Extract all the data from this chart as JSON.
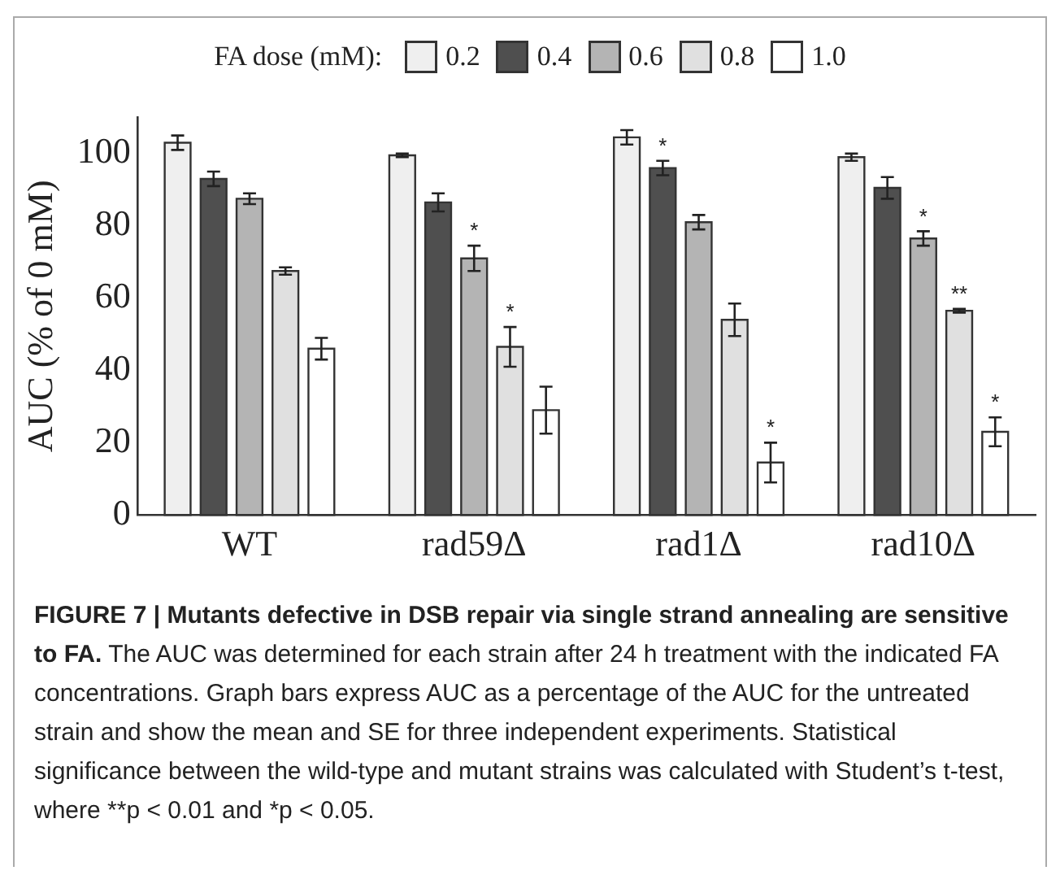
{
  "chart_data": {
    "type": "bar",
    "ylabel": "AUC (% of 0 mM)",
    "legend_title": "FA dose (mM):",
    "legend": "top",
    "grid": false,
    "categories": [
      "WT",
      "rad59Δ",
      "rad1Δ",
      "rad10Δ"
    ],
    "ylim": [
      0,
      110
    ],
    "yticks": [
      0,
      20,
      40,
      60,
      80,
      100
    ],
    "series": [
      {
        "name": "0.2",
        "color": "#efefef",
        "values": [
          103,
          99.5,
          104.5,
          99
        ],
        "errors": [
          2,
          0.5,
          2,
          1
        ]
      },
      {
        "name": "0.4",
        "color": "#4f4f4f",
        "values": [
          93,
          86.5,
          96,
          90.5
        ],
        "errors": [
          2,
          2.5,
          2,
          3
        ],
        "value_labels": [
          null,
          null,
          "*",
          null
        ]
      },
      {
        "name": "0.6",
        "color": "#b4b4b4",
        "values": [
          87.5,
          71,
          81,
          76.5
        ],
        "errors": [
          1.5,
          3.5,
          2,
          2
        ],
        "value_labels": [
          null,
          "*",
          null,
          "*"
        ]
      },
      {
        "name": "0.8",
        "color": "#e0e0e0",
        "values": [
          67.5,
          46.5,
          54,
          56.5
        ],
        "errors": [
          1,
          5.5,
          4.5,
          0.5
        ],
        "value_labels": [
          null,
          "*",
          null,
          "**"
        ]
      },
      {
        "name": "1.0",
        "color": "#ffffff",
        "values": [
          46,
          29,
          14.5,
          23
        ],
        "errors": [
          3,
          6.5,
          5.5,
          4
        ],
        "value_labels": [
          null,
          null,
          "*",
          "*"
        ]
      }
    ],
    "annotations": [
      "FIGURE 7 | Mutants defective in DSB repair via single strand annealing are sensitive to FA.",
      "The AUC was determined for each strain after 24 h treatment with the indicated FA concentrations. Graph bars express AUC as a percentage of the AUC for the untreated strain and show the mean and SE for three independent experiments. Statistical significance between the wild-type and mutant strains was calculated with Student’s t-test, where **p < 0.01 and *p < 0.05."
    ]
  }
}
